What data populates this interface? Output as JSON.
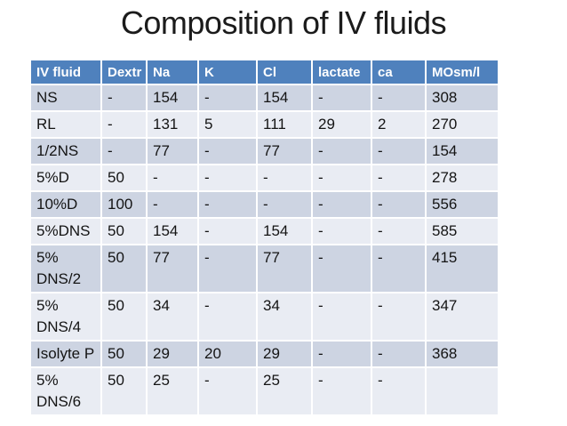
{
  "slide": {
    "title": "Composition of IV fluids"
  },
  "colors": {
    "header_bg": "#4f81bd",
    "header_text": "#ffffff",
    "row_stripe_dark": "#cdd4e2",
    "row_stripe_light": "#e9ecf3",
    "grid": "#ffffff",
    "body_text": "#141414",
    "title_text": "#1b1b1b"
  },
  "table": {
    "columns": [
      "IV fluid",
      "Dextr",
      "Na",
      "K",
      "Cl",
      "lactate",
      "ca",
      "MOsm/l"
    ],
    "rows": [
      [
        "NS",
        "-",
        "154",
        "-",
        "154",
        "-",
        "-",
        "308"
      ],
      [
        "RL",
        "-",
        "131",
        "5",
        "111",
        "29",
        "2",
        "270"
      ],
      [
        "1/2NS",
        "-",
        "77",
        "-",
        "77",
        "-",
        "-",
        "154"
      ],
      [
        "5%D",
        "50",
        "-",
        "-",
        "-",
        "-",
        "-",
        "278"
      ],
      [
        "10%D",
        "100",
        "-",
        "-",
        "-",
        "-",
        "-",
        "556"
      ],
      [
        "5%DNS",
        "50",
        "154",
        "-",
        "154",
        "-",
        "-",
        "585"
      ],
      [
        "5%\nDNS/2",
        "50",
        "77",
        "-",
        "77",
        "-",
        "-",
        "415"
      ],
      [
        "5%\nDNS/4",
        "50",
        "34",
        "-",
        "34",
        "-",
        "-",
        "347"
      ],
      [
        "Isolyte P",
        "50",
        "29",
        "20",
        "29",
        "-",
        "-",
        "368"
      ],
      [
        "5%\nDNS/6",
        "50",
        "25",
        "-",
        "25",
        "-",
        "-",
        ""
      ]
    ]
  }
}
